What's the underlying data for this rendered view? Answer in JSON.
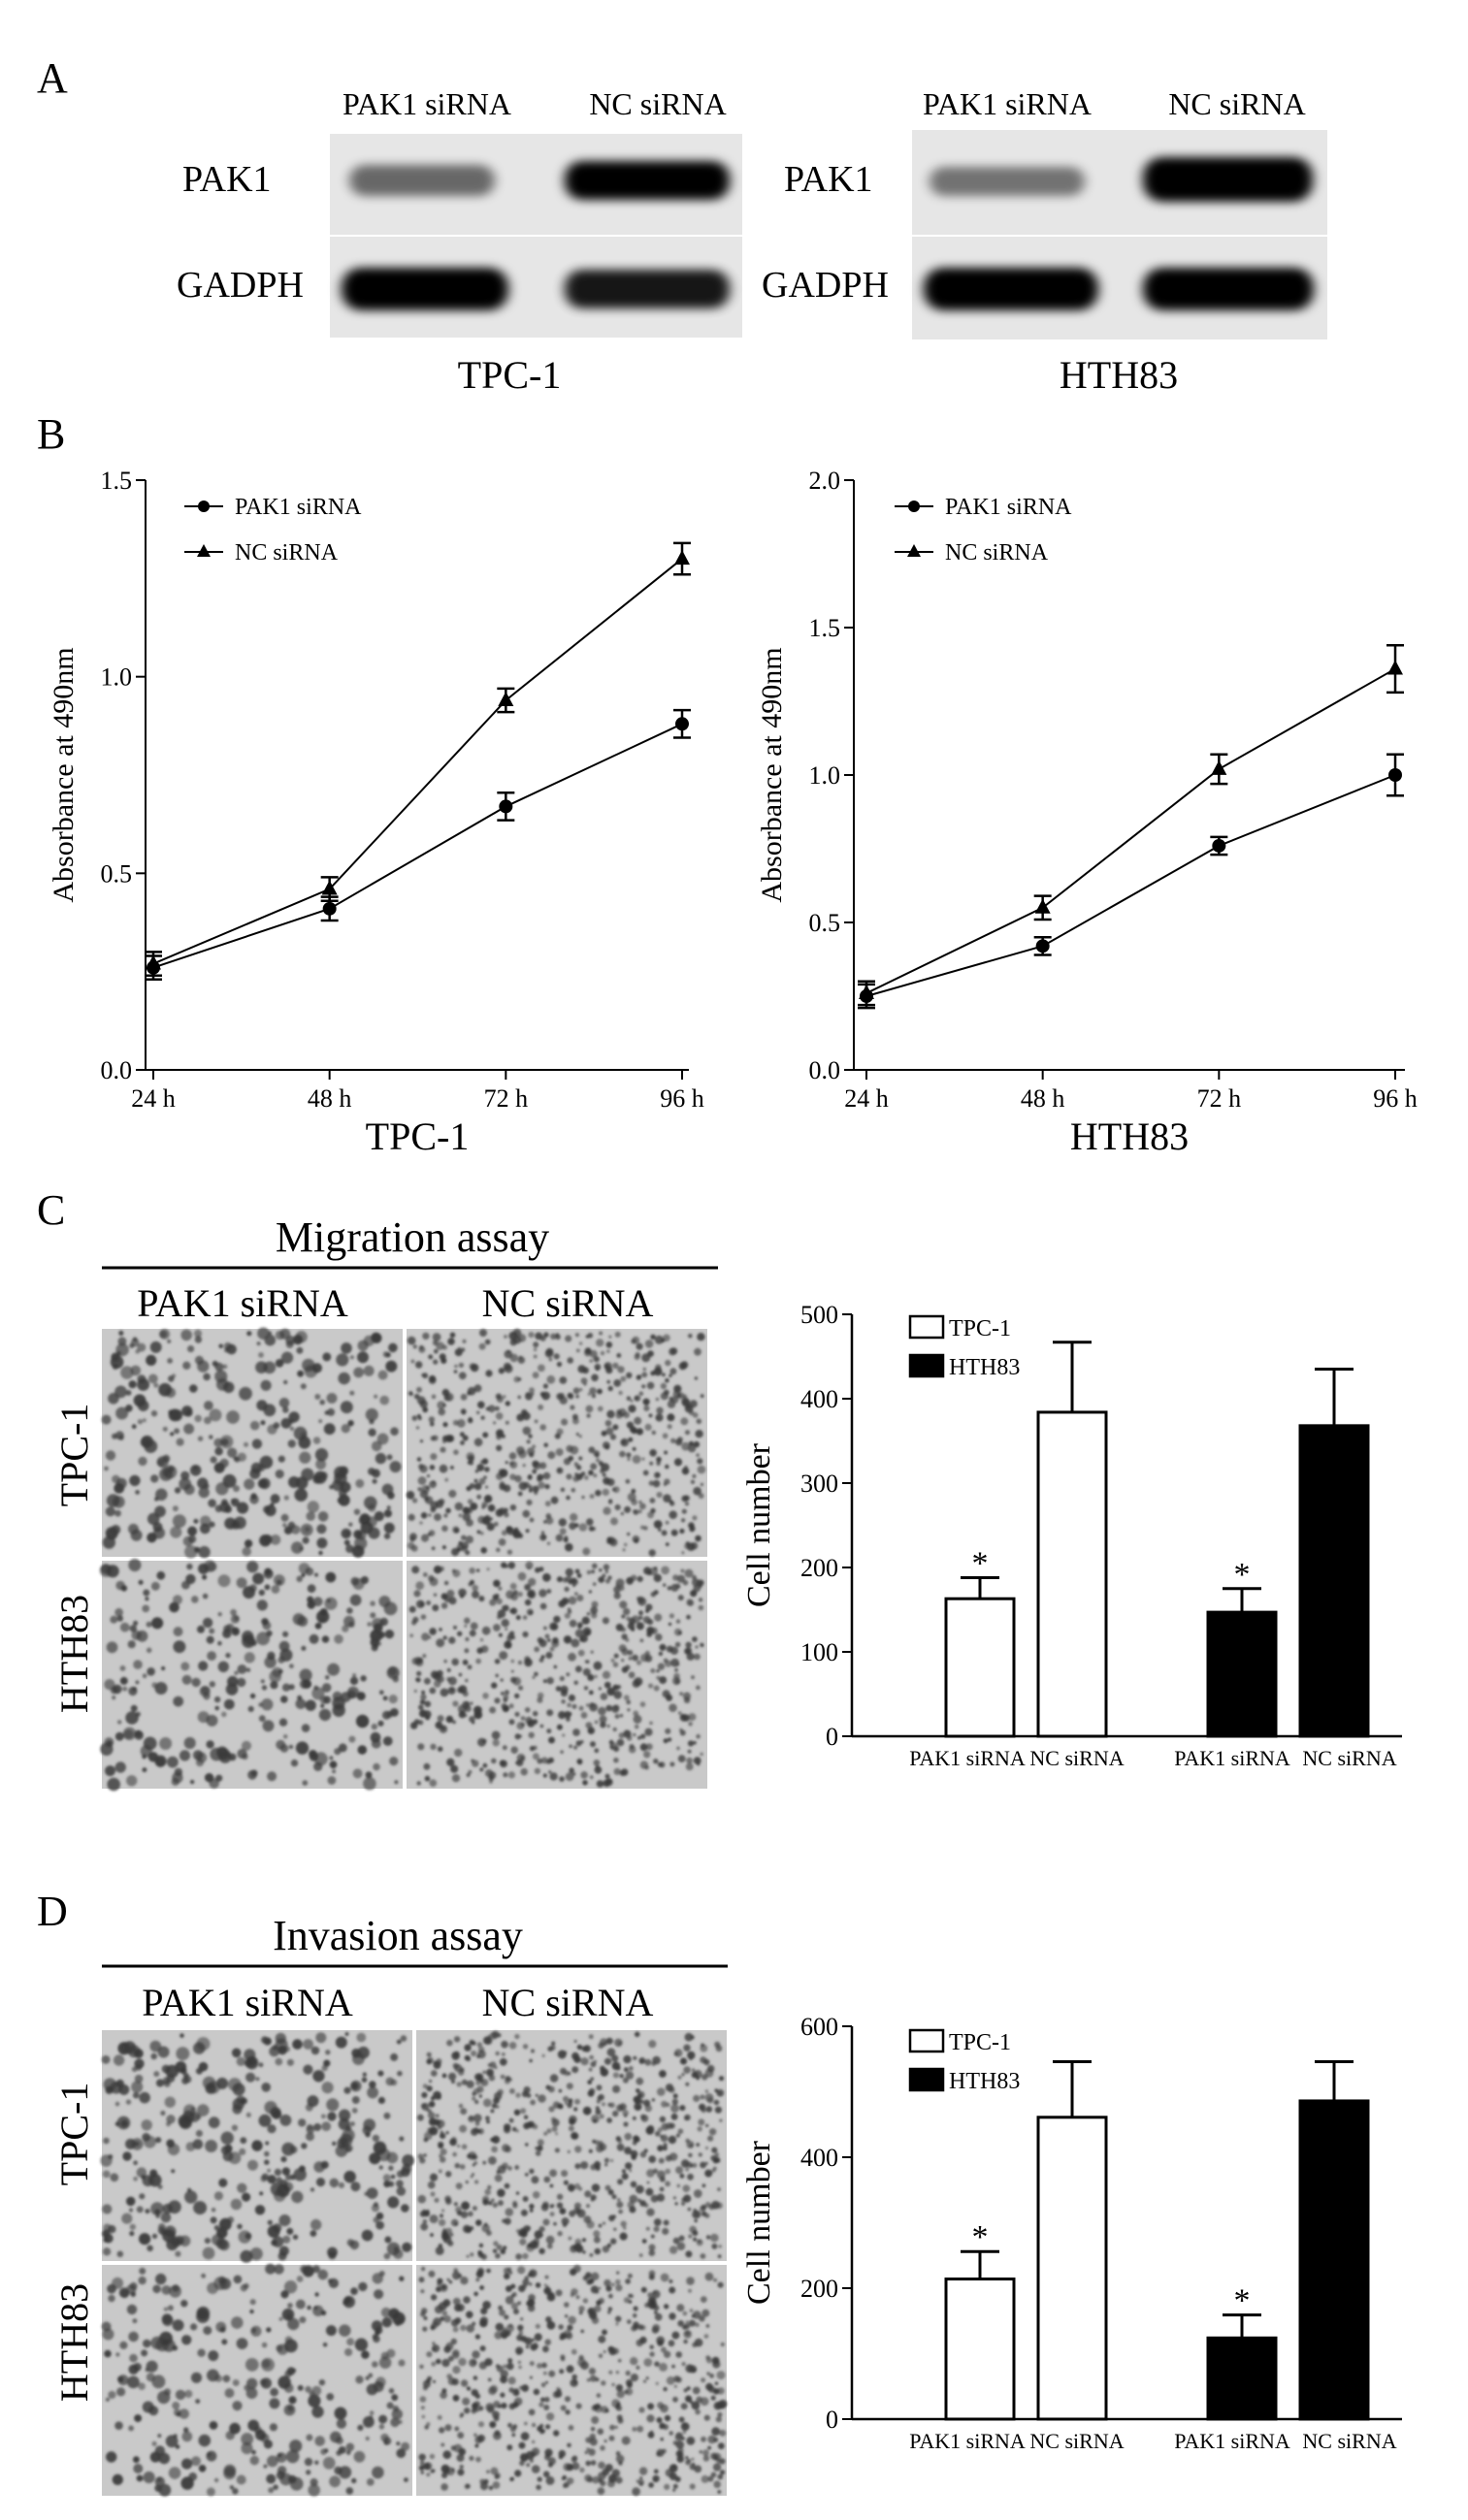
{
  "panels": {
    "A": {
      "letter": "A",
      "blots": [
        {
          "cell_line": "TPC-1",
          "lane_labels": [
            "PAK1 siRNA",
            "NC siRNA"
          ],
          "proteins": [
            "PAK1",
            "GADPH"
          ],
          "pak1_band_intensity": [
            0.55,
            1.0
          ],
          "gadph_band_intensity": [
            1.0,
            0.9
          ]
        },
        {
          "cell_line": "HTH83",
          "lane_labels": [
            "PAK1 siRNA",
            "NC siRNA"
          ],
          "proteins": [
            "PAK1",
            "GADPH"
          ],
          "pak1_band_intensity": [
            0.5,
            1.0
          ],
          "gadph_band_intensity": [
            1.0,
            1.0
          ]
        }
      ]
    },
    "B": {
      "letter": "B"
    },
    "C": {
      "letter": "C",
      "title": "Migration assay",
      "col_labels": [
        "PAK1 siRNA",
        "NC siRNA"
      ],
      "row_labels": [
        "TPC-1",
        "HTH83"
      ]
    },
    "D": {
      "letter": "D",
      "title": "Invasion assay",
      "col_labels": [
        "PAK1 siRNA",
        "NC siRNA"
      ],
      "row_labels": [
        "TPC-1",
        "HTH83"
      ]
    }
  },
  "colors": {
    "line": "#000000",
    "bar_tpc1": "#ffffff",
    "bar_hth83": "#000000",
    "micrograph_bg": "#c9c9c9",
    "micrograph_cell": "#3a3a3a"
  },
  "chart_data": [
    {
      "type": "line",
      "panel": "B",
      "categories": [
        "24 h",
        "48 h",
        "72 h",
        "96 h"
      ],
      "xlabel": "TPC-1",
      "ylabel": "Absorbance at 490nm",
      "ylim": [
        0,
        1.5
      ],
      "yticks": [
        "0.0",
        "0.5",
        "1.0",
        "1.5"
      ],
      "legend_position": "top-left",
      "grid": false,
      "series": [
        {
          "name": "PAK1 siRNA",
          "marker": "circle",
          "values": [
            0.26,
            0.41,
            0.67,
            0.88
          ],
          "errors": [
            0.03,
            0.03,
            0.035,
            0.035
          ]
        },
        {
          "name": "NC siRNA",
          "marker": "triangle",
          "values": [
            0.27,
            0.46,
            0.94,
            1.3
          ],
          "errors": [
            0.03,
            0.03,
            0.03,
            0.04
          ]
        }
      ]
    },
    {
      "type": "line",
      "panel": "B",
      "categories": [
        "24 h",
        "48 h",
        "72 h",
        "96 h"
      ],
      "xlabel": "HTH83",
      "ylabel": "Absorbance at 490nm",
      "ylim": [
        0,
        2.0
      ],
      "yticks": [
        "0.0",
        "0.5",
        "1.0",
        "1.5",
        "2.0"
      ],
      "legend_position": "top-left",
      "grid": false,
      "series": [
        {
          "name": "PAK1 siRNA",
          "marker": "circle",
          "values": [
            0.25,
            0.42,
            0.76,
            1.0
          ],
          "errors": [
            0.04,
            0.03,
            0.03,
            0.07
          ]
        },
        {
          "name": "NC siRNA",
          "marker": "triangle",
          "values": [
            0.26,
            0.55,
            1.02,
            1.36
          ],
          "errors": [
            0.04,
            0.04,
            0.05,
            0.08
          ]
        }
      ]
    },
    {
      "type": "bar",
      "panel": "C",
      "categories": [
        "PAK1 siRNA",
        "NC siRNA",
        "PAK1 siRNA",
        "NC siRNA"
      ],
      "groups": [
        "TPC-1",
        "TPC-1",
        "HTH83",
        "HTH83"
      ],
      "values": [
        163,
        384,
        147,
        368
      ],
      "errors": [
        25,
        83,
        28,
        67
      ],
      "significant": [
        true,
        false,
        true,
        false
      ],
      "ylabel": "Cell number",
      "ylim": [
        0,
        500
      ],
      "yticks": [
        "0",
        "100",
        "200",
        "300",
        "400",
        "500"
      ],
      "legend": [
        "TPC-1",
        "HTH83"
      ],
      "legend_position": "top-left",
      "grid": false
    },
    {
      "type": "bar",
      "panel": "D",
      "categories": [
        "PAK1 siRNA",
        "NC siRNA",
        "PAK1 siRNA",
        "NC siRNA"
      ],
      "groups": [
        "TPC-1",
        "TPC-1",
        "HTH83",
        "HTH83"
      ],
      "values": [
        214,
        461,
        124,
        486
      ],
      "errors": [
        42,
        85,
        35,
        60
      ],
      "significant": [
        true,
        false,
        true,
        false
      ],
      "ylabel": "Cell number",
      "ylim": [
        0,
        600
      ],
      "yticks": [
        "0",
        "200",
        "400",
        "600"
      ],
      "legend": [
        "TPC-1",
        "HTH83"
      ],
      "legend_position": "top-left",
      "grid": false
    }
  ]
}
